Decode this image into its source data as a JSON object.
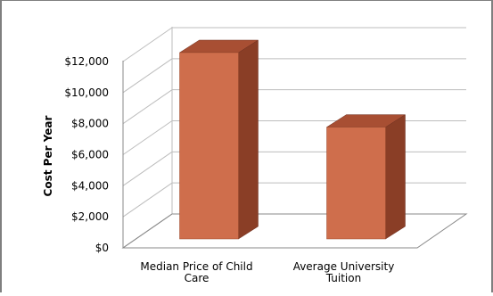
{
  "chart_data": {
    "type": "bar",
    "title": "",
    "xlabel": "",
    "ylabel": "Cost Per Year",
    "categories": [
      "Median Price of Child Care",
      "Average University Tuition"
    ],
    "category_lines": [
      [
        "Median Price of Child",
        "Care"
      ],
      [
        "Average University",
        "Tuition"
      ]
    ],
    "series": [
      {
        "values": [
          12000,
          7200
        ]
      }
    ],
    "ylim": [
      0,
      12000
    ],
    "yticks": [
      0,
      2000,
      4000,
      6000,
      8000,
      10000,
      12000
    ],
    "ytick_labels": [
      "$0",
      "$2,000",
      "$4,000",
      "$6,000",
      "$8,000",
      "$10,000",
      "$12,000"
    ],
    "grid": true,
    "legend": "none",
    "three_d": true,
    "colors": {
      "bar_front": "#cf6e4c",
      "bar_side": "#8a3e26",
      "bar_top": "#a84f33",
      "grid": "#bdbdbd",
      "wall_edge": "#8a8a8a",
      "frame": "#7f7f7f"
    }
  }
}
